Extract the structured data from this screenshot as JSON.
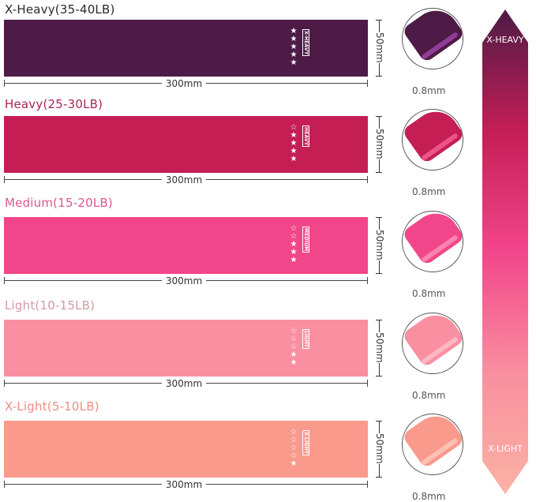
{
  "bands": [
    {
      "label": "X-Heavy(35-40LB)",
      "tag": "X-HEAVY",
      "stars": 5,
      "length": "300mm",
      "width": "50mm",
      "thickness": "0.8mm",
      "color": "#4d1b45",
      "label_color": "#2a2a2a",
      "lip": "#b04bc0"
    },
    {
      "label": "Heavy(25-30LB)",
      "tag": "HEAVY",
      "stars": 4,
      "length": "300mm",
      "width": "50mm",
      "thickness": "0.8mm",
      "color": "#c41e55",
      "label_color": "#a82455",
      "lip": "#ff6aa0"
    },
    {
      "label": "Medium(15-20LB)",
      "tag": "MEDIUM",
      "stars": 3,
      "length": "300mm",
      "width": "50mm",
      "thickness": "0.8mm",
      "color": "#f2468a",
      "label_color": "#e0578c",
      "lip": "#ff9cc0"
    },
    {
      "label": "Light(10-15LB)",
      "tag": "LIGHT",
      "stars": 2,
      "length": "300mm",
      "width": "50mm",
      "thickness": "0.8mm",
      "color": "#f98fa0",
      "label_color": "#d49aa4",
      "lip": "#ffc7d0"
    },
    {
      "label": "X-Light(5-10LB)",
      "tag": "X-LIGHT",
      "stars": 1,
      "length": "300mm",
      "width": "50mm",
      "thickness": "0.8mm",
      "color": "#f99a8c",
      "label_color": "#ef8d84",
      "lip": "#ffd0c4"
    }
  ],
  "max_stars": 5,
  "scale": {
    "top": "X-HEAVY",
    "bottom": "X-LIGHT",
    "gradient": [
      "#4d1b45",
      "#c41e55",
      "#f2468a",
      "#f98fa0",
      "#fbb2a4"
    ]
  }
}
